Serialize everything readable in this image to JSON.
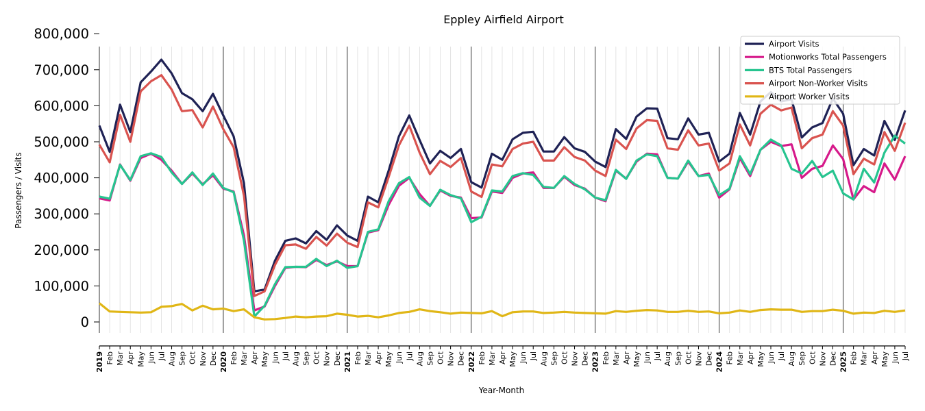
{
  "chart_data": {
    "type": "line",
    "title": "Eppley Airfield Airport",
    "xlabel": "Year-Month",
    "ylabel": "Passengers / Visits",
    "ylim": [
      -30000,
      800000
    ],
    "yticks": [
      0,
      100000,
      200000,
      300000,
      400000,
      500000,
      600000,
      700000,
      800000
    ],
    "ytick_labels": [
      "0",
      "100,000",
      "200,000",
      "300,000",
      "400,000",
      "500,000",
      "600,000",
      "700,000",
      "800,000"
    ],
    "x_start": "2019-01",
    "x_end": "2025-07",
    "month_labels": [
      "Jan",
      "Feb",
      "Mar",
      "Apr",
      "May",
      "Jun",
      "Jul",
      "Aug",
      "Sep",
      "Oct",
      "Nov",
      "Dec"
    ],
    "grid": "vertical lines for each month; darker lines at each January",
    "legend_position": "top-right",
    "series": [
      {
        "name": "Airport Visits",
        "color": "#1f2255",
        "values": [
          545000,
          472000,
          603000,
          527000,
          665000,
          695000,
          728000,
          690000,
          635000,
          618000,
          585000,
          633000,
          573000,
          515000,
          385000,
          85000,
          90000,
          170000,
          225000,
          232000,
          218000,
          252000,
          228000,
          268000,
          240000,
          225000,
          348000,
          332000,
          420000,
          515000,
          573000,
          505000,
          440000,
          475000,
          455000,
          480000,
          388000,
          373000,
          467000,
          450000,
          507000,
          525000,
          528000,
          473000,
          473000,
          513000,
          482000,
          472000,
          445000,
          430000,
          535000,
          508000,
          570000,
          593000,
          592000,
          510000,
          507000,
          565000,
          520000,
          525000,
          445000,
          467000,
          580000,
          520000,
          612000,
          638000,
          612000,
          618000,
          512000,
          540000,
          552000,
          620000,
          578000,
          435000,
          480000,
          462000,
          558000,
          505000,
          587000
        ]
      },
      {
        "name": "Motionworks Total Passengers",
        "color": "#d6198a",
        "values": [
          343000,
          337000,
          437000,
          392000,
          455000,
          467000,
          450000,
          420000,
          383000,
          412000,
          382000,
          407000,
          370000,
          362000,
          240000,
          32000,
          43000,
          100000,
          150000,
          153000,
          152000,
          172000,
          158000,
          168000,
          155000,
          155000,
          248000,
          255000,
          325000,
          378000,
          400000,
          355000,
          322000,
          365000,
          350000,
          345000,
          288000,
          290000,
          362000,
          358000,
          400000,
          412000,
          415000,
          372000,
          372000,
          403000,
          380000,
          370000,
          345000,
          335000,
          420000,
          398000,
          445000,
          467000,
          465000,
          400000,
          398000,
          445000,
          405000,
          412000,
          345000,
          368000,
          455000,
          405000,
          478000,
          500000,
          488000,
          493000,
          400000,
          425000,
          433000,
          490000,
          452000,
          340000,
          377000,
          360000,
          440000,
          395000,
          460000
        ]
      },
      {
        "name": "BTS Total Passengers",
        "color": "#26c48f",
        "values": [
          348000,
          342000,
          436000,
          394000,
          460000,
          468000,
          458000,
          415000,
          383000,
          415000,
          380000,
          412000,
          372000,
          360000,
          225000,
          15000,
          45000,
          105000,
          152000,
          153000,
          153000,
          175000,
          155000,
          170000,
          150000,
          155000,
          250000,
          257000,
          335000,
          385000,
          402000,
          345000,
          322000,
          367000,
          352000,
          343000,
          277000,
          292000,
          365000,
          362000,
          405000,
          413000,
          408000,
          375000,
          372000,
          405000,
          383000,
          368000,
          345000,
          338000,
          422000,
          397000,
          448000,
          465000,
          460000,
          400000,
          398000,
          448000,
          405000,
          408000,
          352000,
          370000,
          460000,
          410000,
          478000,
          506000,
          490000,
          425000,
          412000,
          447000,
          402000,
          420000,
          357000,
          340000,
          425000,
          387000,
          470000,
          517000,
          495000
        ]
      },
      {
        "name": "Airport Non-Worker Visits",
        "color": "#d9534f",
        "values": [
          492000,
          443000,
          575000,
          500000,
          640000,
          668000,
          685000,
          645000,
          585000,
          588000,
          540000,
          598000,
          535000,
          485000,
          350000,
          72000,
          85000,
          158000,
          213000,
          215000,
          203000,
          236000,
          212000,
          245000,
          220000,
          208000,
          332000,
          318000,
          402000,
          490000,
          545000,
          470000,
          410000,
          447000,
          430000,
          455000,
          362000,
          347000,
          437000,
          432000,
          480000,
          495000,
          500000,
          448000,
          448000,
          485000,
          458000,
          448000,
          420000,
          405000,
          506000,
          480000,
          537000,
          560000,
          558000,
          482000,
          478000,
          532000,
          490000,
          495000,
          420000,
          440000,
          548000,
          490000,
          578000,
          603000,
          587000,
          595000,
          482000,
          510000,
          520000,
          585000,
          545000,
          410000,
          453000,
          437000,
          527000,
          475000,
          553000
        ]
      },
      {
        "name": "Airport Worker Visits",
        "color": "#e0b616",
        "values": [
          52000,
          29000,
          28000,
          27000,
          26000,
          27000,
          42000,
          44000,
          50000,
          32000,
          45000,
          35000,
          37000,
          30000,
          35000,
          13000,
          7000,
          8000,
          11000,
          15000,
          13000,
          15000,
          16000,
          23000,
          20000,
          15000,
          17000,
          13000,
          18000,
          25000,
          28000,
          35000,
          30000,
          27000,
          23000,
          26000,
          25000,
          24000,
          30000,
          16000,
          27000,
          29000,
          29000,
          25000,
          26000,
          28000,
          26000,
          25000,
          24000,
          23000,
          30000,
          28000,
          31000,
          33000,
          32000,
          28000,
          28000,
          31000,
          28000,
          29000,
          24000,
          26000,
          32000,
          28000,
          33000,
          35000,
          34000,
          34000,
          28000,
          30000,
          30000,
          34000,
          31000,
          23000,
          26000,
          25000,
          31000,
          28000,
          32000
        ]
      }
    ]
  }
}
